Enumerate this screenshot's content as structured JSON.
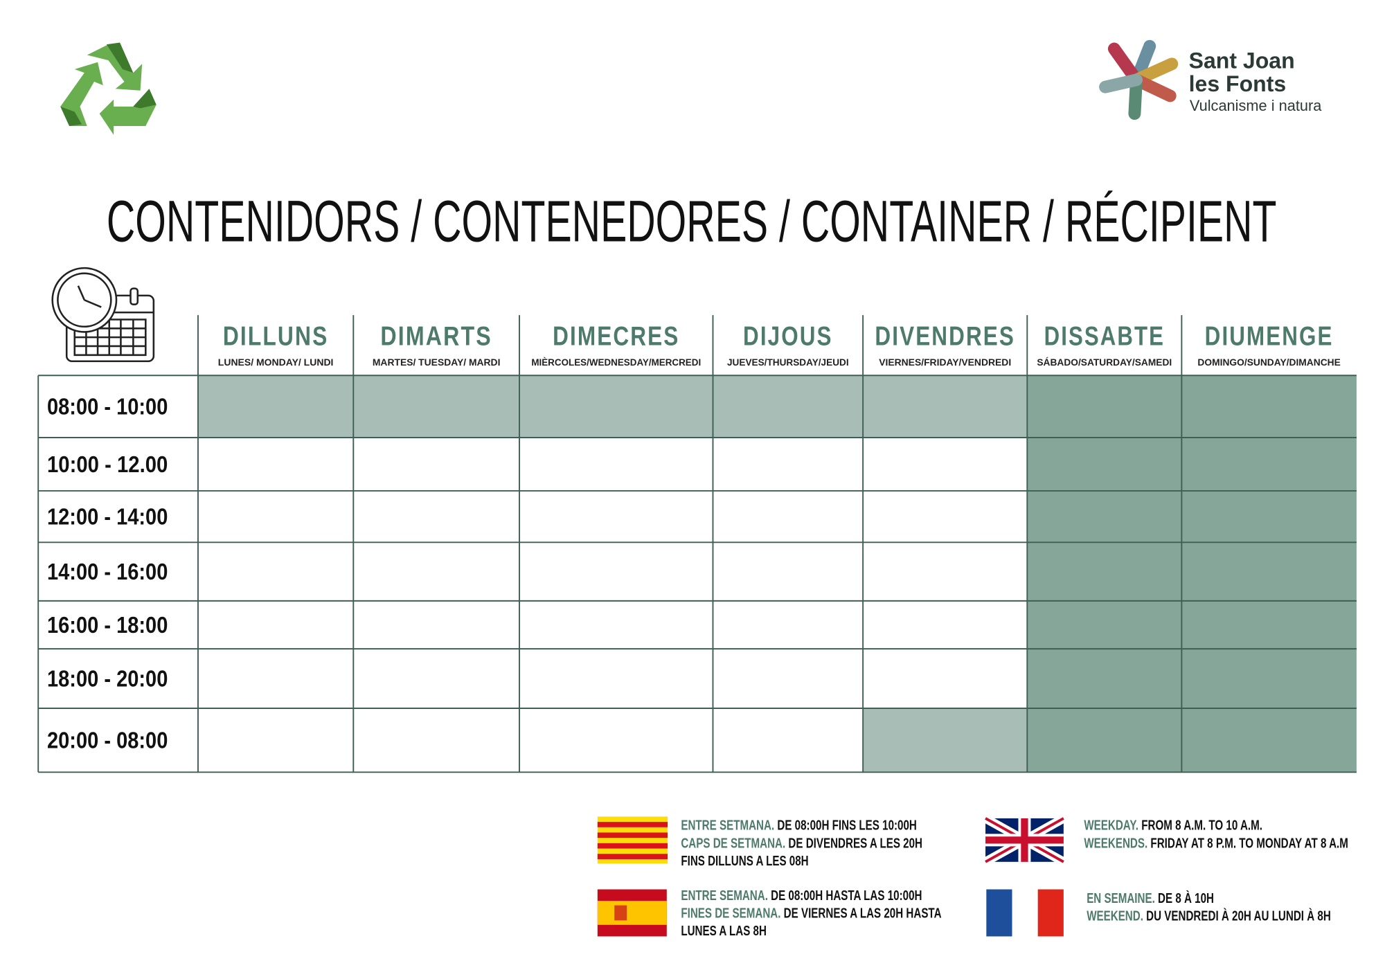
{
  "logo": {
    "name_line1": "Sant Joan",
    "name_line2": "les Fonts",
    "tagline": "Vulcanisme i natura"
  },
  "title": "CONTENIDORS / CONTENEDORES / CONTAINER / RÉCIPIENT",
  "table": {
    "columns": [
      {
        "name": "DILLUNS",
        "subtitle": "LUNES/ MONDAY/ LUNDI"
      },
      {
        "name": "DIMARTS",
        "subtitle": "MARTES/ TUESDAY/ MARDI"
      },
      {
        "name": "DIMECRES",
        "subtitle": "MIÈRCOLES/WEDNESDAY/MERCREDI"
      },
      {
        "name": "DIJOUS",
        "subtitle": "JUEVES/THURSDAY/JEUDI"
      },
      {
        "name": "DIVENDRES",
        "subtitle": "VIERNES/FRIDAY/VENDREDI"
      },
      {
        "name": "DISSABTE",
        "subtitle": "SÁBADO/SATURDAY/SAMEDI"
      },
      {
        "name": "DIUMENGE",
        "subtitle": "DOMINGO/SUNDAY/DIMANCHE"
      }
    ],
    "rows": [
      "08:00 - 10:00",
      "10:00 - 12.00",
      "12:00 - 14:00",
      "14:00 - 16:00",
      "16:00 - 18:00",
      "18:00 - 20:00",
      "20:00 - 08:00"
    ]
  },
  "legend": [
    {
      "lines": [
        {
          "label": "ENTRE SETMANA.",
          "text": "DE 08:00H FINS LES 10:00H"
        },
        {
          "label": "CAPS DE SETMANA.",
          "text": "DE DIVENDRES A LES 20H"
        },
        {
          "text": "FINS DILLUNS A LES 08H"
        }
      ]
    },
    {
      "lines": [
        {
          "label": "WEEKDAY.",
          "text": "FROM 8 A.M. TO 10 A.M."
        },
        {
          "label": "WEEKENDS.",
          "text": "FRIDAY AT 8 P.M. TO MONDAY AT 8 A.M"
        }
      ]
    },
    {
      "lines": [
        {
          "label": "ENTRE SEMANA.",
          "text": "DE 08:00H HASTA LAS 10:00H"
        },
        {
          "label": "FINES DE SEMANA.",
          "text": "DE VIERNES A LAS 20H HASTA"
        },
        {
          "text": "LUNES A LAS 8H"
        }
      ]
    },
    {
      "lines": [
        {
          "label": "EN SEMAINE.",
          "text": "DE 8 À 10H"
        },
        {
          "label": "WEEKEND.",
          "text": "DU VENDREDI À 20H AU LUNDI À 8H"
        }
      ]
    }
  ]
}
